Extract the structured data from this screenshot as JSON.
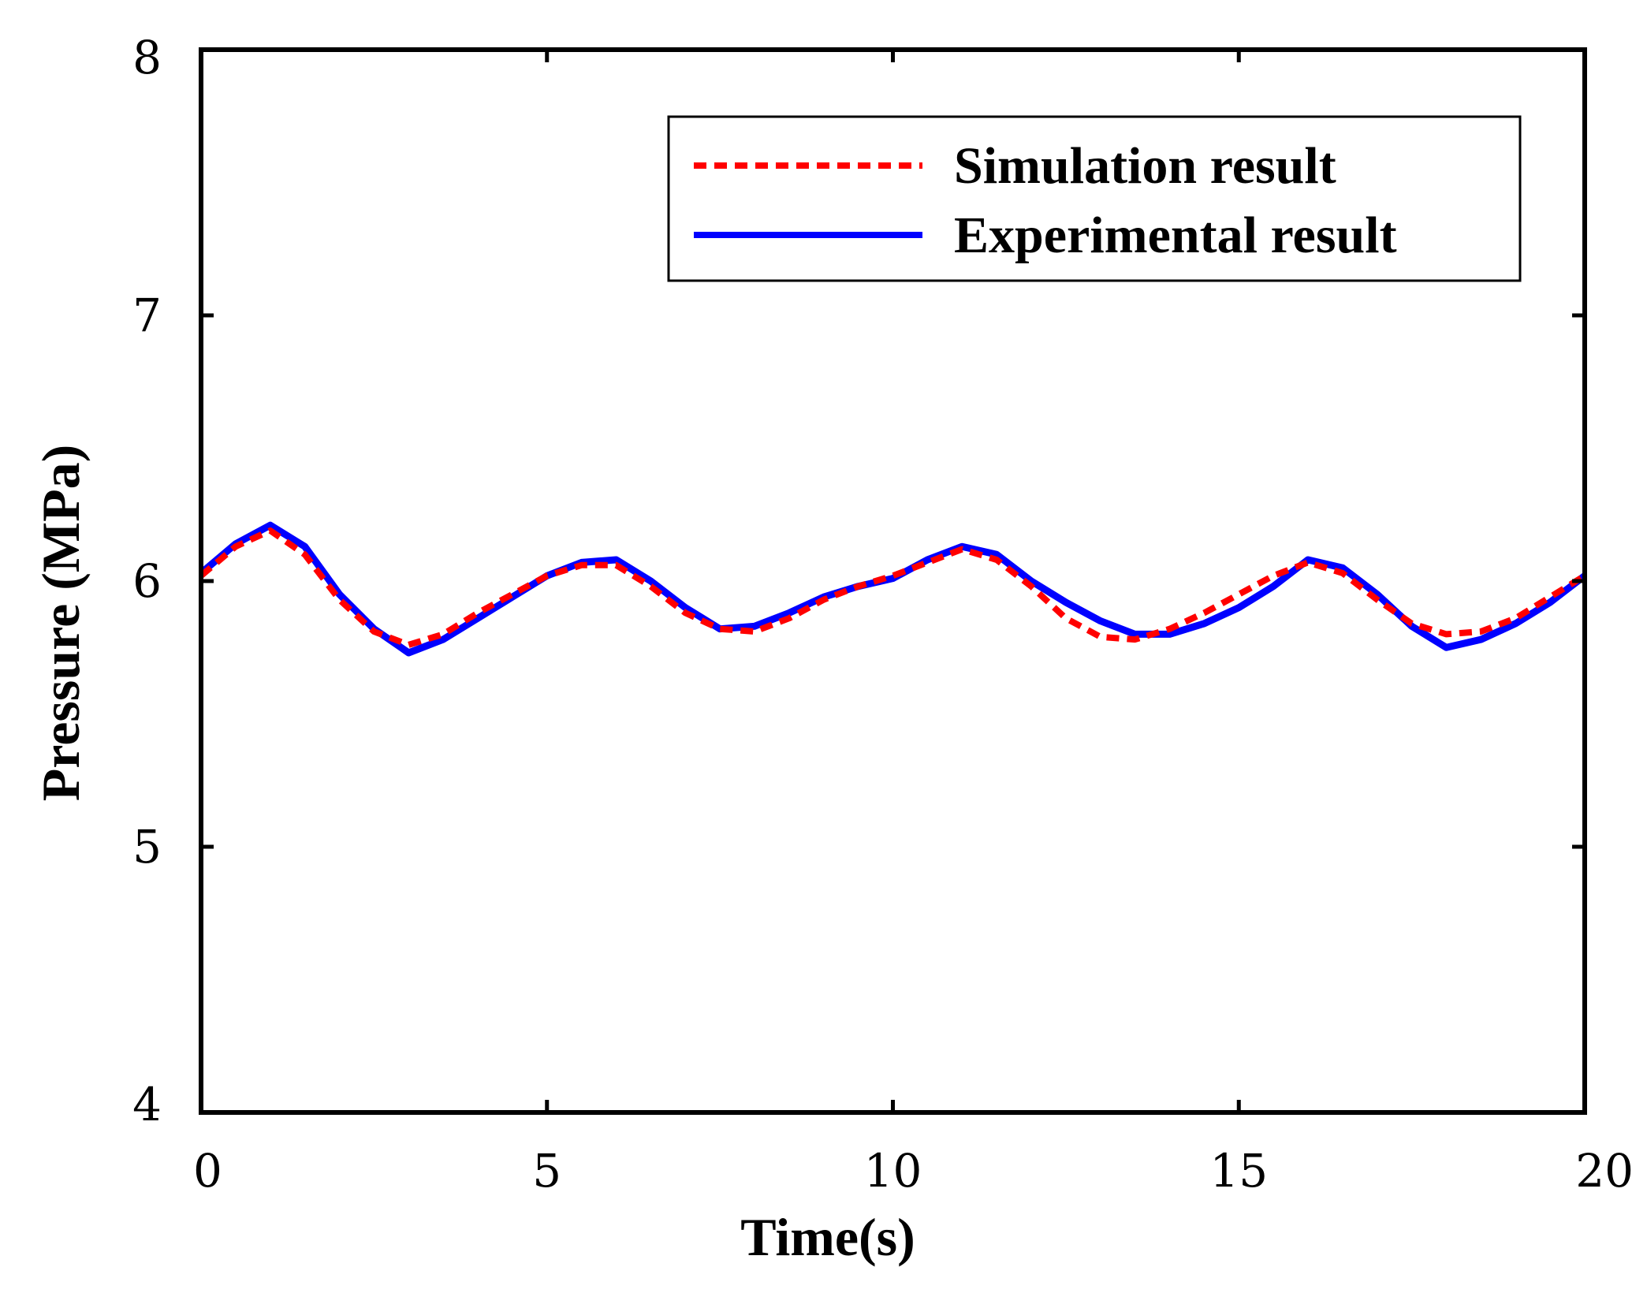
{
  "chart_data": {
    "type": "line",
    "title": "",
    "xlabel": "Time(s)",
    "ylabel": "Pressure (MPa)",
    "xlim": [
      0,
      20
    ],
    "ylim": [
      4,
      8
    ],
    "xticks": [
      0,
      5,
      10,
      15,
      20
    ],
    "yticks": [
      4,
      5,
      6,
      7,
      8
    ],
    "xtick_labels": [
      "0",
      "5",
      "10",
      "15",
      "20"
    ],
    "ytick_labels": [
      "4",
      "5",
      "6",
      "7",
      "8"
    ],
    "grid": false,
    "legend_position": "top-right",
    "series": [
      {
        "name": "Simulation result",
        "color": "#ff0000",
        "style": "dashed",
        "x": [
          0,
          0.5,
          1,
          1.5,
          2,
          2.5,
          3,
          3.5,
          4,
          4.5,
          5,
          5.5,
          6,
          6.5,
          7,
          7.5,
          8,
          8.5,
          9,
          9.5,
          10,
          10.5,
          11,
          11.5,
          12,
          12.5,
          13,
          13.5,
          14,
          14.5,
          15,
          15.5,
          16,
          16.5,
          17,
          17.5,
          18,
          18.5,
          19,
          19.5,
          20
        ],
        "y": [
          6.02,
          6.13,
          6.19,
          6.1,
          5.93,
          5.81,
          5.76,
          5.8,
          5.88,
          5.95,
          6.02,
          6.06,
          6.06,
          5.98,
          5.88,
          5.82,
          5.81,
          5.86,
          5.93,
          5.98,
          6.02,
          6.07,
          6.12,
          6.08,
          5.98,
          5.86,
          5.79,
          5.78,
          5.82,
          5.88,
          5.95,
          6.02,
          6.07,
          6.03,
          5.93,
          5.84,
          5.8,
          5.81,
          5.86,
          5.94,
          6.02
        ]
      },
      {
        "name": "Experimental result",
        "color": "#0000ff",
        "style": "solid",
        "x": [
          0,
          0.5,
          1,
          1.5,
          2,
          2.5,
          3,
          3.5,
          4,
          4.5,
          5,
          5.5,
          6,
          6.5,
          7,
          7.5,
          8,
          8.5,
          9,
          9.5,
          10,
          10.5,
          11,
          11.5,
          12,
          12.5,
          13,
          13.5,
          14,
          14.5,
          15,
          15.5,
          16,
          16.5,
          17,
          17.5,
          18,
          18.5,
          19,
          19.5,
          20
        ],
        "y": [
          6.03,
          6.14,
          6.21,
          6.13,
          5.95,
          5.82,
          5.73,
          5.78,
          5.86,
          5.94,
          6.02,
          6.07,
          6.08,
          6.0,
          5.9,
          5.82,
          5.83,
          5.88,
          5.94,
          5.98,
          6.01,
          6.08,
          6.13,
          6.1,
          6.0,
          5.92,
          5.85,
          5.8,
          5.8,
          5.84,
          5.9,
          5.98,
          6.08,
          6.05,
          5.95,
          5.83,
          5.75,
          5.78,
          5.84,
          5.92,
          6.02
        ]
      }
    ]
  }
}
